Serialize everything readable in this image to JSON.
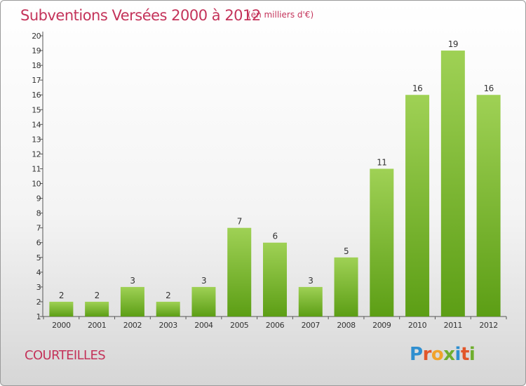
{
  "header": {
    "title": "Subventions Versées 2000 à 2012",
    "unit_note": "(en milliers d'€)"
  },
  "footer": {
    "commune": "COURTEILLES",
    "logo_letters": [
      "P",
      "r",
      "o",
      "x",
      "i",
      "t",
      "i"
    ],
    "logo_colors": [
      "#2f8fd0",
      "#e2572b",
      "#f1a32c",
      "#6fae2e",
      "#2f8fd0",
      "#e2572b",
      "#6fae2e"
    ]
  },
  "colors": {
    "bar_top": "#9fd155",
    "bar_bottom": "#5c9e15",
    "accent": "#c4335a"
  },
  "chart_data": {
    "type": "bar",
    "title": "Subventions Versées 2000 à 2012",
    "categories": [
      "2000",
      "2001",
      "2002",
      "2003",
      "2004",
      "2005",
      "2006",
      "2007",
      "2008",
      "2009",
      "2010",
      "2011",
      "2012"
    ],
    "values": [
      2,
      2,
      3,
      2,
      3,
      7,
      6,
      3,
      5,
      11,
      16,
      19,
      16
    ],
    "ylim": [
      1,
      20
    ],
    "yticks": [
      1,
      2,
      3,
      4,
      5,
      6,
      7,
      8,
      9,
      10,
      11,
      12,
      13,
      14,
      15,
      16,
      17,
      18,
      19,
      20
    ],
    "data_labels": true,
    "grid": false,
    "xlabel": "",
    "ylabel": ""
  }
}
